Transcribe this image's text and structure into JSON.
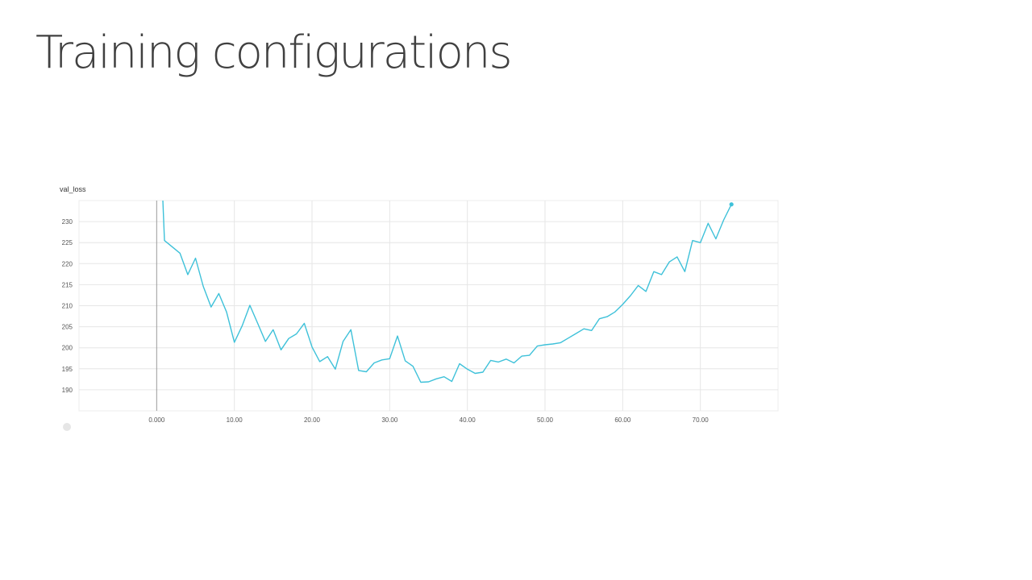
{
  "slide": {
    "title": "Training configurations"
  },
  "chart_data": {
    "type": "line",
    "title": "val_loss",
    "xlabel": "",
    "ylabel": "",
    "xlim": [
      -10,
      80
    ],
    "ylim": [
      185,
      235
    ],
    "x_ticks": [
      0,
      10,
      20,
      30,
      40,
      50,
      60,
      70
    ],
    "x_tick_labels": [
      "0.000",
      "10.00",
      "20.00",
      "30.00",
      "40.00",
      "50.00",
      "60.00",
      "70.00"
    ],
    "y_ticks": [
      190,
      195,
      200,
      205,
      210,
      215,
      220,
      225,
      230
    ],
    "y_tick_labels": [
      "190",
      "195",
      "200",
      "205",
      "210",
      "215",
      "220",
      "225",
      "230"
    ],
    "grid": true,
    "line_color": "#3ec1d9",
    "series": [
      {
        "x": [
          0.8,
          1,
          3,
          4,
          5,
          6,
          7,
          8,
          9,
          10,
          11,
          12,
          13,
          14,
          15,
          16,
          17,
          18,
          19,
          20,
          21,
          22,
          23,
          24,
          25,
          26,
          27,
          28,
          29,
          30,
          31,
          32,
          33,
          34,
          35,
          36,
          37,
          38,
          39,
          40,
          41,
          42,
          43,
          44,
          45,
          46,
          47,
          48,
          49,
          50,
          51,
          52,
          53,
          54,
          55,
          56,
          57,
          58,
          59,
          60,
          61,
          62,
          63,
          64,
          65,
          66,
          67,
          68,
          69,
          70,
          71,
          72,
          73,
          74
        ],
        "y": [
          235,
          225.5,
          222.5,
          217.4,
          221.3,
          214.6,
          209.7,
          212.9,
          208.5,
          201.3,
          205.2,
          210.1,
          205.8,
          201.5,
          204.3,
          199.5,
          202.2,
          203.3,
          205.8,
          200.2,
          196.7,
          197.9,
          194.9,
          201.5,
          204.3,
          194.6,
          194.3,
          196.4,
          197.1,
          197.4,
          202.8,
          196.9,
          195.6,
          191.8,
          191.9,
          192.6,
          193.1,
          192.0,
          196.2,
          194.9,
          193.9,
          194.2,
          197.0,
          196.6,
          197.3,
          196.4,
          198.0,
          198.2,
          200.4,
          200.7,
          200.9,
          201.2,
          202.3,
          203.4,
          204.5,
          204.1,
          206.9,
          207.4,
          208.5,
          210.3,
          212.4,
          214.8,
          213.4,
          218.1,
          217.4,
          220.4,
          221.6,
          218.1,
          225.5,
          225.0,
          229.6,
          225.9,
          230.4,
          234.1
        ]
      }
    ],
    "last_point_marker": true
  }
}
